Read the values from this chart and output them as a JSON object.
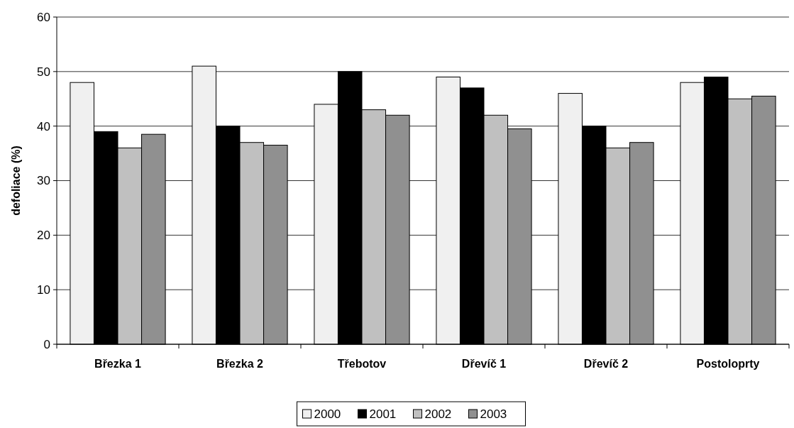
{
  "chart_data": {
    "type": "bar",
    "ylabel": "defoliace (%)",
    "categories": [
      "Březka 1",
      "Březka 2",
      "Třebotov",
      "Dřevíč 1",
      "Dřevíč 2",
      "Postoloprty"
    ],
    "series": [
      {
        "name": "2000",
        "color": "#f0f0f0",
        "values": [
          48,
          51,
          44,
          49,
          46,
          48
        ]
      },
      {
        "name": "2001",
        "color": "#000000",
        "values": [
          39,
          40,
          50,
          47,
          40,
          49
        ]
      },
      {
        "name": "2002",
        "color": "#c0c0c0",
        "values": [
          36,
          37,
          43,
          42,
          36,
          45
        ]
      },
      {
        "name": "2003",
        "color": "#909090",
        "values": [
          38.5,
          36.5,
          42,
          39.5,
          37,
          45.5
        ]
      }
    ],
    "ylim": [
      0,
      60
    ],
    "yticks": [
      0,
      10,
      20,
      30,
      40,
      50,
      60
    ],
    "grid": "y",
    "legend": "bottom"
  }
}
